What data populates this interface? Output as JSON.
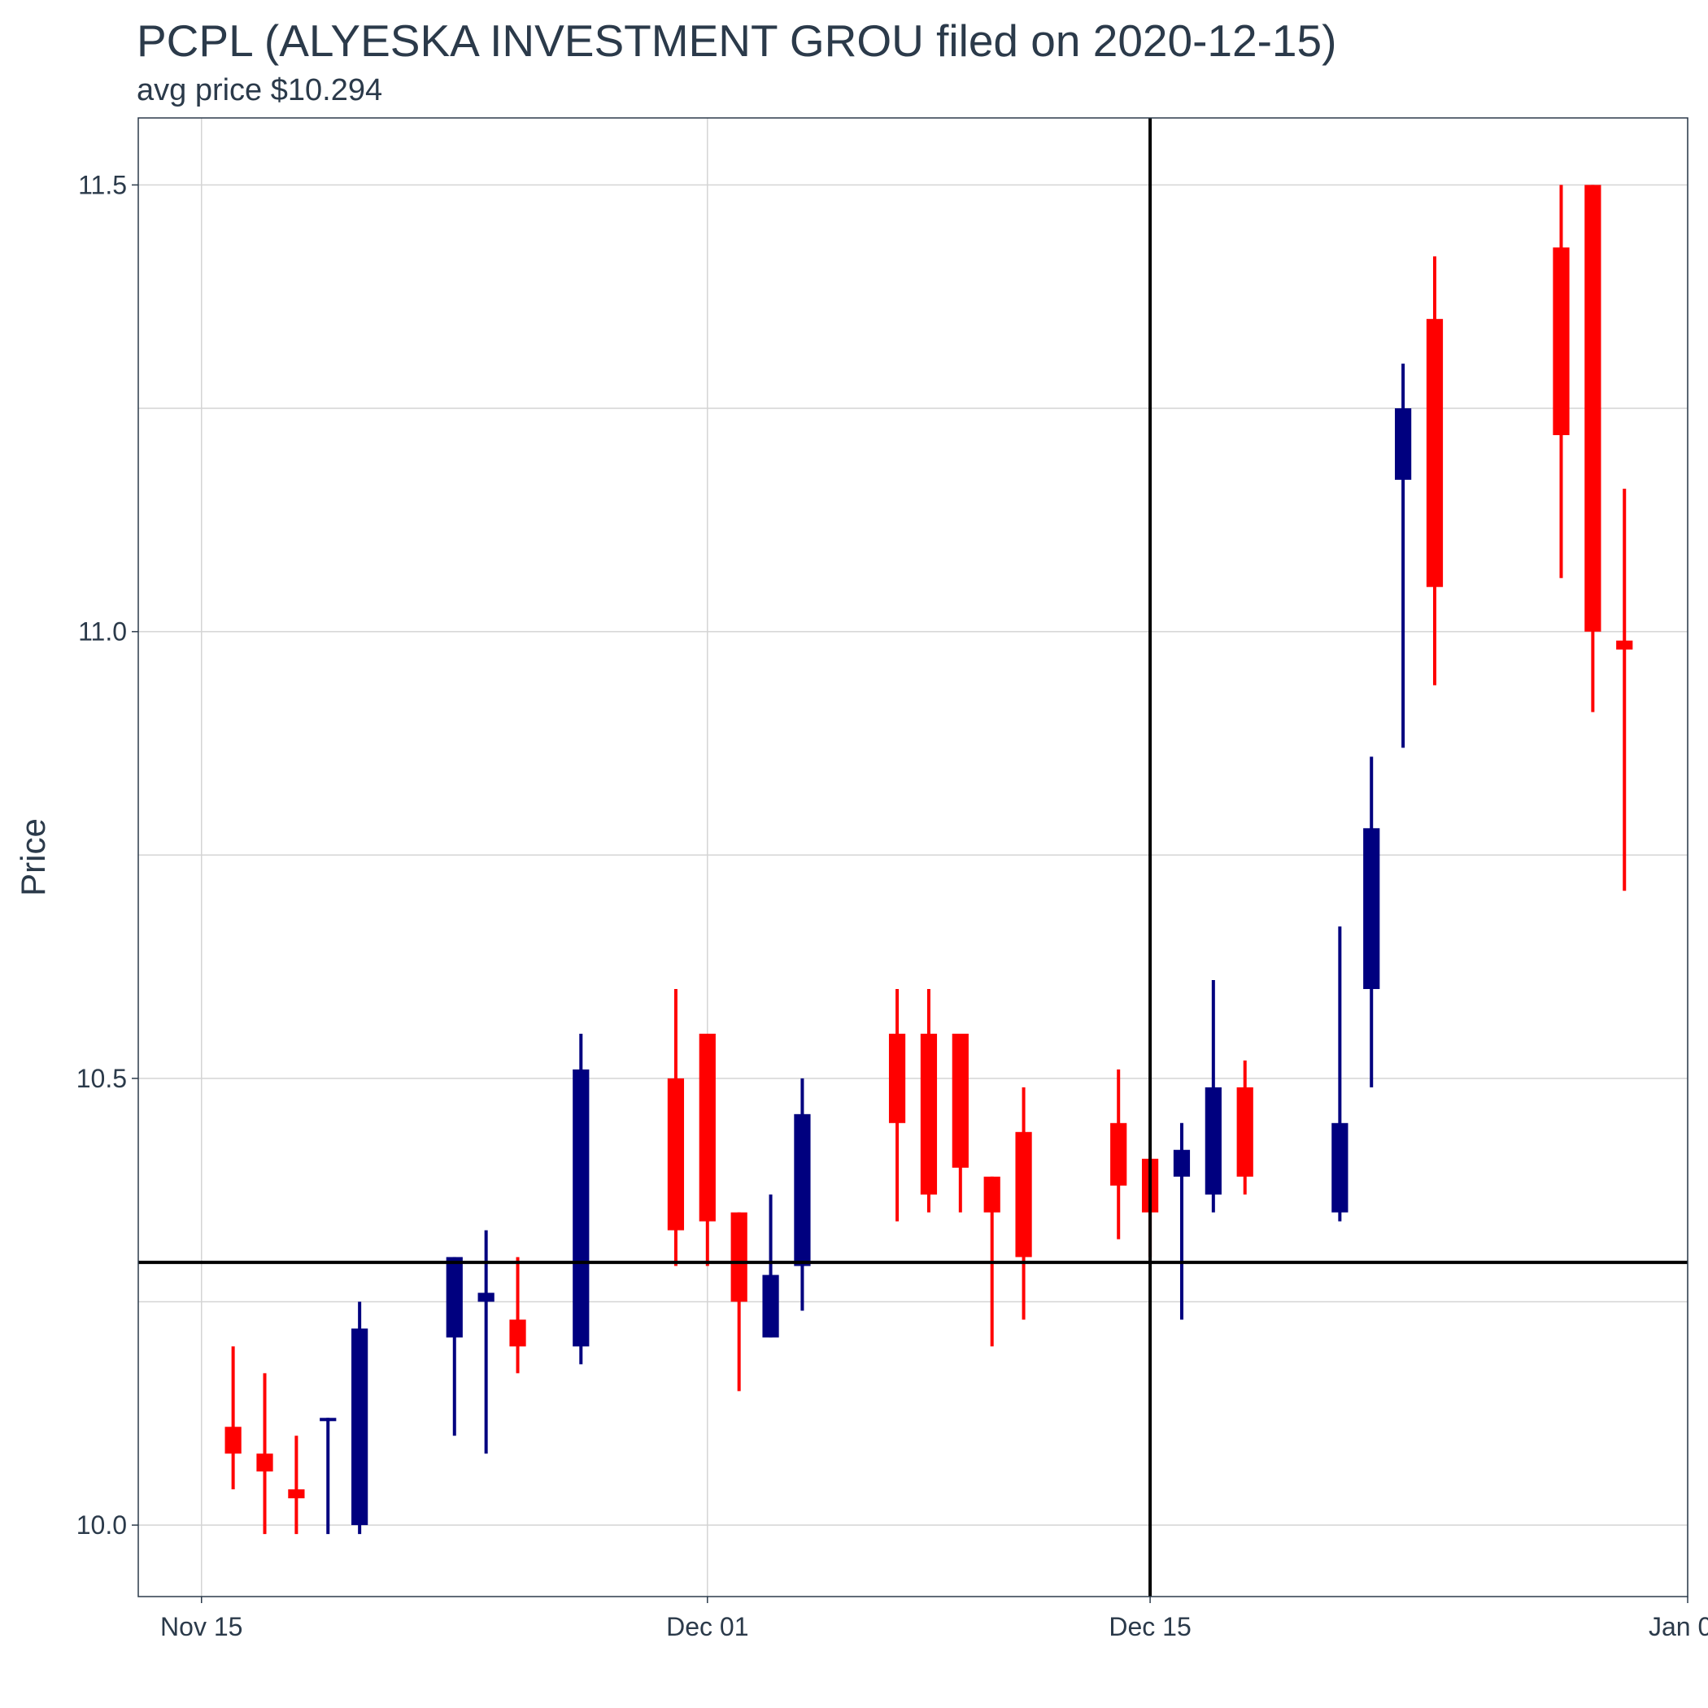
{
  "header": {
    "title": "PCPL (ALYESKA INVESTMENT GROU filed on 2020-12-15)",
    "subtitle": "avg price $10.294"
  },
  "chart_data": {
    "type": "candlestick",
    "title": "PCPL (ALYESKA INVESTMENT GROU filed on 2020-12-15)",
    "subtitle": "avg price $10.294",
    "ylabel": "Price",
    "xlabel": "",
    "x_range": [
      "2020-11-13",
      "2021-01-01"
    ],
    "ylim": [
      9.92,
      11.575
    ],
    "y_ticks": [
      10.0,
      10.5,
      11.0,
      11.5
    ],
    "x_ticks": [
      {
        "date": "2020-11-15",
        "label": "Nov 15"
      },
      {
        "date": "2020-12-01",
        "label": "Dec 01"
      },
      {
        "date": "2020-12-15",
        "label": "Dec 15"
      },
      {
        "date": "2021-01-01",
        "label": "Jan 01"
      }
    ],
    "reference_lines": {
      "horizontal_price": 10.294,
      "vertical_date": "2020-12-15"
    },
    "colors": {
      "up": "#00007f",
      "down": "#ff0000"
    },
    "candles": [
      {
        "date": "2020-11-16",
        "open": 10.11,
        "high": 10.2,
        "low": 10.04,
        "close": 10.08
      },
      {
        "date": "2020-11-17",
        "open": 10.08,
        "high": 10.17,
        "low": 9.99,
        "close": 10.06
      },
      {
        "date": "2020-11-18",
        "open": 10.04,
        "high": 10.1,
        "low": 9.99,
        "close": 10.03
      },
      {
        "date": "2020-11-19",
        "open": 10.12,
        "high": 10.12,
        "low": 9.99,
        "close": 10.12
      },
      {
        "date": "2020-11-20",
        "open": 10.0,
        "high": 10.25,
        "low": 9.99,
        "close": 10.22
      },
      {
        "date": "2020-11-23",
        "open": 10.21,
        "high": 10.3,
        "low": 10.1,
        "close": 10.3
      },
      {
        "date": "2020-11-24",
        "open": 10.25,
        "high": 10.33,
        "low": 10.08,
        "close": 10.26
      },
      {
        "date": "2020-11-25",
        "open": 10.23,
        "high": 10.3,
        "low": 10.17,
        "close": 10.2
      },
      {
        "date": "2020-11-27",
        "open": 10.2,
        "high": 10.55,
        "low": 10.18,
        "close": 10.51
      },
      {
        "date": "2020-11-30",
        "open": 10.5,
        "high": 10.6,
        "low": 10.29,
        "close": 10.33
      },
      {
        "date": "2020-12-01",
        "open": 10.55,
        "high": 10.55,
        "low": 10.29,
        "close": 10.34
      },
      {
        "date": "2020-12-02",
        "open": 10.35,
        "high": 10.35,
        "low": 10.15,
        "close": 10.25
      },
      {
        "date": "2020-12-03",
        "open": 10.21,
        "high": 10.37,
        "low": 10.21,
        "close": 10.28
      },
      {
        "date": "2020-12-04",
        "open": 10.29,
        "high": 10.5,
        "low": 10.24,
        "close": 10.46
      },
      {
        "date": "2020-12-07",
        "open": 10.55,
        "high": 10.6,
        "low": 10.34,
        "close": 10.45
      },
      {
        "date": "2020-12-08",
        "open": 10.55,
        "high": 10.6,
        "low": 10.35,
        "close": 10.37
      },
      {
        "date": "2020-12-09",
        "open": 10.55,
        "high": 10.55,
        "low": 10.35,
        "close": 10.4
      },
      {
        "date": "2020-12-10",
        "open": 10.39,
        "high": 10.39,
        "low": 10.2,
        "close": 10.35
      },
      {
        "date": "2020-12-11",
        "open": 10.44,
        "high": 10.49,
        "low": 10.23,
        "close": 10.3
      },
      {
        "date": "2020-12-14",
        "open": 10.45,
        "high": 10.51,
        "low": 10.32,
        "close": 10.38
      },
      {
        "date": "2020-12-15",
        "open": 10.41,
        "high": 10.41,
        "low": 10.3,
        "close": 10.35
      },
      {
        "date": "2020-12-16",
        "open": 10.39,
        "high": 10.45,
        "low": 10.23,
        "close": 10.42
      },
      {
        "date": "2020-12-17",
        "open": 10.37,
        "high": 10.61,
        "low": 10.35,
        "close": 10.49
      },
      {
        "date": "2020-12-18",
        "open": 10.49,
        "high": 10.52,
        "low": 10.37,
        "close": 10.39
      },
      {
        "date": "2020-12-21",
        "open": 10.35,
        "high": 10.67,
        "low": 10.34,
        "close": 10.45
      },
      {
        "date": "2020-12-22",
        "open": 10.6,
        "high": 10.86,
        "low": 10.49,
        "close": 10.78
      },
      {
        "date": "2020-12-23",
        "open": 11.17,
        "high": 11.3,
        "low": 10.87,
        "close": 11.25
      },
      {
        "date": "2020-12-24",
        "open": 11.35,
        "high": 11.42,
        "low": 10.94,
        "close": 11.05
      },
      {
        "date": "2020-12-28",
        "open": 11.43,
        "high": 11.5,
        "low": 11.06,
        "close": 11.22
      },
      {
        "date": "2020-12-29",
        "open": 11.5,
        "high": 11.5,
        "low": 10.91,
        "close": 11.0
      },
      {
        "date": "2020-12-30",
        "open": 10.99,
        "high": 11.16,
        "low": 10.71,
        "close": 10.98
      }
    ]
  }
}
